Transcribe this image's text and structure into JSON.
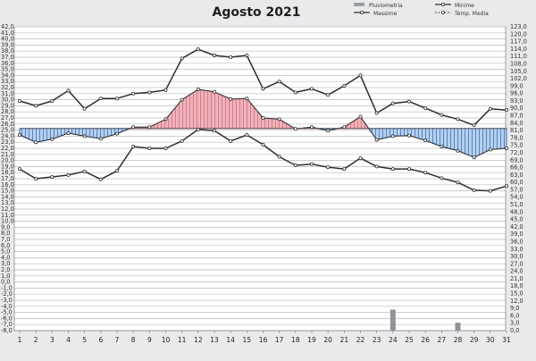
{
  "chart_data": {
    "type": "line",
    "title": "Agosto 2021",
    "legend": {
      "placement": "top-right",
      "entries": [
        "Pluviometria",
        "Minime",
        "Massime",
        "Temp. Media"
      ]
    },
    "x": [
      1,
      2,
      3,
      4,
      5,
      6,
      7,
      8,
      9,
      10,
      11,
      12,
      13,
      14,
      15,
      16,
      17,
      18,
      19,
      20,
      21,
      22,
      23,
      24,
      25,
      26,
      27,
      28,
      29,
      30,
      31
    ],
    "left_axis": {
      "ylim": [
        -8,
        42
      ],
      "ticks": [
        "42,0",
        "41,0",
        "40,0",
        "39,0",
        "38,0",
        "37,0",
        "36,0",
        "35,0",
        "34,0",
        "33,0",
        "32,0",
        "31,0",
        "30,0",
        "29,0",
        "28,0",
        "27,0",
        "26,0",
        "25,0",
        "24,0",
        "23,0",
        "22,0",
        "21,0",
        "20,0",
        "19,0",
        "18,0",
        "17,0",
        "16,0",
        "15,0",
        "14,0",
        "13,0",
        "12,0",
        "11,0",
        "10,0",
        "9,0",
        "8,0",
        "7,0",
        "6,0",
        "5,0",
        "4,0",
        "3,0",
        "2,0",
        "1,0",
        "0,0",
        "-1,0",
        "-2,0",
        "-3,0",
        "-4,0",
        "-5,0",
        "-6,0",
        "-7,0",
        "-8,0"
      ]
    },
    "right_axis": {
      "ylim": [
        0,
        123
      ],
      "ticks": [
        "123,0",
        "120,0",
        "117,0",
        "114,0",
        "111,0",
        "108,0",
        "105,0",
        "102,0",
        "99,0",
        "96,0",
        "93,0",
        "90,0",
        "87,0",
        "84,0",
        "81,0",
        "78,0",
        "75,0",
        "72,0",
        "69,0",
        "66,0",
        "63,0",
        "60,0",
        "57,0",
        "54,0",
        "51,0",
        "48,0",
        "45,0",
        "42,0",
        "39,0",
        "36,0",
        "33,0",
        "30,0",
        "27,0",
        "24,0",
        "21,0",
        "18,0",
        "15,0",
        "12,0",
        "9,0",
        "6,0",
        "3,0",
        "0,0"
      ]
    },
    "grid": true,
    "series": [
      {
        "name": "Massime",
        "values": [
          29.8,
          29.0,
          29.8,
          31.5,
          28.5,
          30.2,
          30.2,
          31.0,
          31.2,
          31.6,
          36.8,
          38.3,
          37.3,
          37.0,
          37.3,
          31.8,
          33.0,
          31.2,
          31.8,
          30.8,
          32.3,
          34.0,
          27.8,
          29.4,
          29.7,
          28.6,
          27.5,
          26.8,
          25.8,
          28.5,
          28.3
        ]
      },
      {
        "name": "Minime",
        "values": [
          18.6,
          17.0,
          17.3,
          17.6,
          18.2,
          16.9,
          18.3,
          22.3,
          22.0,
          22.0,
          23.2,
          25.1,
          24.9,
          23.2,
          24.2,
          22.6,
          20.6,
          19.2,
          19.4,
          18.9,
          18.6,
          20.4,
          19.0,
          18.6,
          18.6,
          18.0,
          17.1,
          16.4,
          15.1,
          15.0,
          15.8
        ]
      },
      {
        "name": "Temp. Media",
        "values": [
          24.2,
          23.0,
          23.5,
          24.5,
          24.0,
          23.6,
          24.4,
          25.5,
          25.5,
          26.8,
          30.0,
          31.7,
          31.3,
          30.1,
          30.2,
          27.0,
          26.8,
          25.2,
          25.5,
          24.9,
          25.5,
          27.2,
          23.4,
          24.0,
          24.1,
          23.3,
          22.3,
          21.6,
          20.5,
          21.8,
          22.0
        ]
      },
      {
        "name": "Pluviometria",
        "values": [
          0,
          0,
          0,
          0,
          0,
          0,
          0,
          0,
          0,
          0,
          0,
          0,
          0,
          0,
          0,
          0,
          0,
          0,
          0,
          0,
          0,
          0,
          0,
          8.5,
          0,
          0,
          0,
          3.2,
          0,
          0,
          0
        ]
      }
    ],
    "colors": {
      "lines": "#2e2e2e",
      "above_fill": "#e79aa2",
      "above_stroke": "#b8465a",
      "below_fill": "#aacaf0",
      "below_stroke": "#24528a",
      "grid": "#b9bcc1",
      "rain_bar": "#8f9399"
    }
  }
}
